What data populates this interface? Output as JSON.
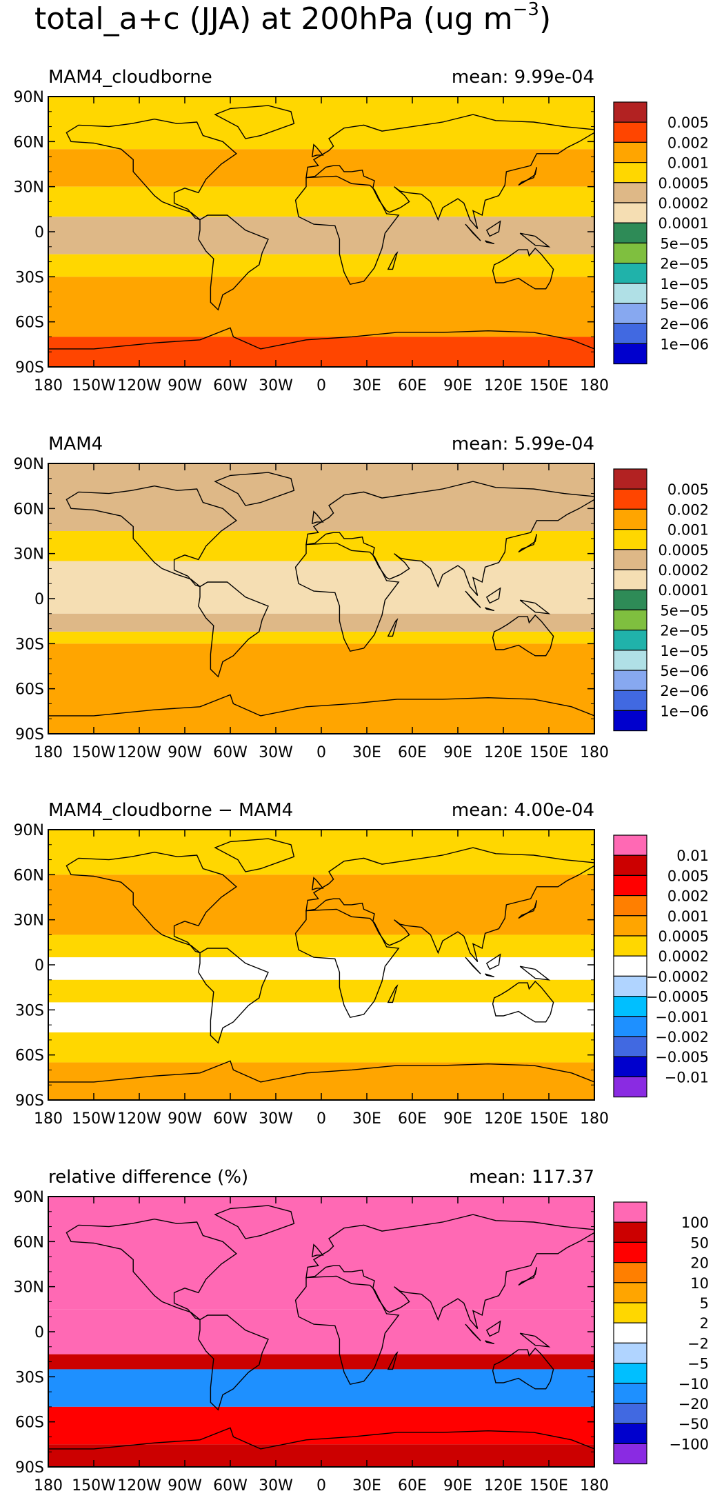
{
  "page": {
    "title": "total_a+c (JJA) at 200hPa (ug m",
    "title_exponent": "−3",
    "title_close": ")"
  },
  "axes": {
    "x_ticks": [
      "180",
      "150W",
      "120W",
      "90W",
      "60W",
      "30W",
      "0",
      "30E",
      "60E",
      "90E",
      "120E",
      "150E",
      "180"
    ],
    "y_ticks": [
      "90N",
      "60N",
      "30N",
      "0",
      "30S",
      "60S",
      "90S"
    ]
  },
  "chart_data": [
    {
      "type": "heatmap",
      "label": "MAM4_cloudborne",
      "mean_text": "mean: 9.99e-04",
      "mean": 0.000999,
      "xlim": [
        -180,
        180
      ],
      "ylim": [
        -90,
        90
      ],
      "legend": {
        "placement": "right",
        "labels": [
          "0.005",
          "0.002",
          "0.001",
          "0.0005",
          "0.0002",
          "0.0001",
          "5e−05",
          "2e−05",
          "1e−05",
          "5e−06",
          "2e−06",
          "1e−06"
        ],
        "colors": [
          "#b22222",
          "#ff4500",
          "#ffa500",
          "#ffd700",
          "#deb887",
          "#f5deb3",
          "#2e8b57",
          "#7fbf3f",
          "#20b2aa",
          "#b0e0e6",
          "#87a8f0",
          "#4169e1",
          "#0000cd"
        ]
      },
      "bands": [
        {
          "lat": [
            90,
            55
          ],
          "color": "#ffd700"
        },
        {
          "lat": [
            55,
            30
          ],
          "color": "#ffa500"
        },
        {
          "lat": [
            30,
            10
          ],
          "color": "#ffd700"
        },
        {
          "lat": [
            10,
            -15
          ],
          "color": "#deb887"
        },
        {
          "lat": [
            -15,
            -30
          ],
          "color": "#ffd700"
        },
        {
          "lat": [
            -30,
            -70
          ],
          "color": "#ffa500"
        },
        {
          "lat": [
            -70,
            -90
          ],
          "color": "#ff4500"
        }
      ]
    },
    {
      "type": "heatmap",
      "label": "MAM4",
      "mean_text": "mean: 5.99e-04",
      "mean": 0.000599,
      "xlim": [
        -180,
        180
      ],
      "ylim": [
        -90,
        90
      ],
      "legend": {
        "placement": "right",
        "labels": [
          "0.005",
          "0.002",
          "0.001",
          "0.0005",
          "0.0002",
          "0.0001",
          "5e−05",
          "2e−05",
          "1e−05",
          "5e−06",
          "2e−06",
          "1e−06"
        ],
        "colors": [
          "#b22222",
          "#ff4500",
          "#ffa500",
          "#ffd700",
          "#deb887",
          "#f5deb3",
          "#2e8b57",
          "#7fbf3f",
          "#20b2aa",
          "#b0e0e6",
          "#87a8f0",
          "#4169e1",
          "#0000cd"
        ]
      },
      "bands": [
        {
          "lat": [
            90,
            45
          ],
          "color": "#deb887"
        },
        {
          "lat": [
            45,
            25
          ],
          "color": "#ffd700"
        },
        {
          "lat": [
            25,
            -10
          ],
          "color": "#f5deb3"
        },
        {
          "lat": [
            -10,
            -22
          ],
          "color": "#deb887"
        },
        {
          "lat": [
            -22,
            -30
          ],
          "color": "#ffd700"
        },
        {
          "lat": [
            -30,
            -90
          ],
          "color": "#ffa500"
        }
      ]
    },
    {
      "type": "heatmap",
      "label": "MAM4_cloudborne − MAM4",
      "mean_text": "mean: 4.00e-04",
      "mean": 0.0004,
      "xlim": [
        -180,
        180
      ],
      "ylim": [
        -90,
        90
      ],
      "legend": {
        "placement": "right",
        "labels": [
          "0.01",
          "0.005",
          "0.002",
          "0.001",
          "0.0005",
          "0.0002",
          "−0.0002",
          "−0.0005",
          "−0.001",
          "−0.002",
          "−0.005",
          "−0.01"
        ],
        "colors": [
          "#ff69b4",
          "#cc0000",
          "#ff0000",
          "#ff7f00",
          "#ffa500",
          "#ffd700",
          "#ffffff",
          "#b0d4ff",
          "#00bfff",
          "#1e90ff",
          "#4169e1",
          "#0000cd",
          "#8a2be2"
        ]
      },
      "bands": [
        {
          "lat": [
            90,
            60
          ],
          "color": "#ffd700"
        },
        {
          "lat": [
            60,
            20
          ],
          "color": "#ffa500"
        },
        {
          "lat": [
            20,
            5
          ],
          "color": "#ffd700"
        },
        {
          "lat": [
            5,
            -10
          ],
          "color": "#ffffff"
        },
        {
          "lat": [
            -10,
            -25
          ],
          "color": "#ffd700"
        },
        {
          "lat": [
            -25,
            -45
          ],
          "color": "#ffffff"
        },
        {
          "lat": [
            -45,
            -65
          ],
          "color": "#ffd700"
        },
        {
          "lat": [
            -65,
            -90
          ],
          "color": "#ffa500"
        }
      ]
    },
    {
      "type": "heatmap",
      "label": "relative difference (%)",
      "mean_text": "mean: 117.37",
      "mean": 117.37,
      "xlim": [
        -180,
        180
      ],
      "ylim": [
        -90,
        90
      ],
      "legend": {
        "placement": "right",
        "labels": [
          "100",
          "50",
          "20",
          "10",
          "5",
          "2",
          "−2",
          "−5",
          "−10",
          "−20",
          "−50",
          "−100"
        ],
        "colors": [
          "#ff69b4",
          "#cc0000",
          "#ff0000",
          "#ff7f00",
          "#ffa500",
          "#ffd700",
          "#ffffff",
          "#b0d4ff",
          "#00bfff",
          "#1e90ff",
          "#4169e1",
          "#0000cd",
          "#8a2be2"
        ]
      },
      "bands": [
        {
          "lat": [
            90,
            15
          ],
          "color": "#ff69b4"
        },
        {
          "lat": [
            15,
            -15
          ],
          "color": "#ff69b4"
        },
        {
          "lat": [
            -15,
            -25
          ],
          "color": "#cc0000"
        },
        {
          "lat": [
            -25,
            -50
          ],
          "color": "#1e90ff"
        },
        {
          "lat": [
            -50,
            -75
          ],
          "color": "#ff0000"
        },
        {
          "lat": [
            -75,
            -90
          ],
          "color": "#cc0000"
        }
      ]
    }
  ]
}
